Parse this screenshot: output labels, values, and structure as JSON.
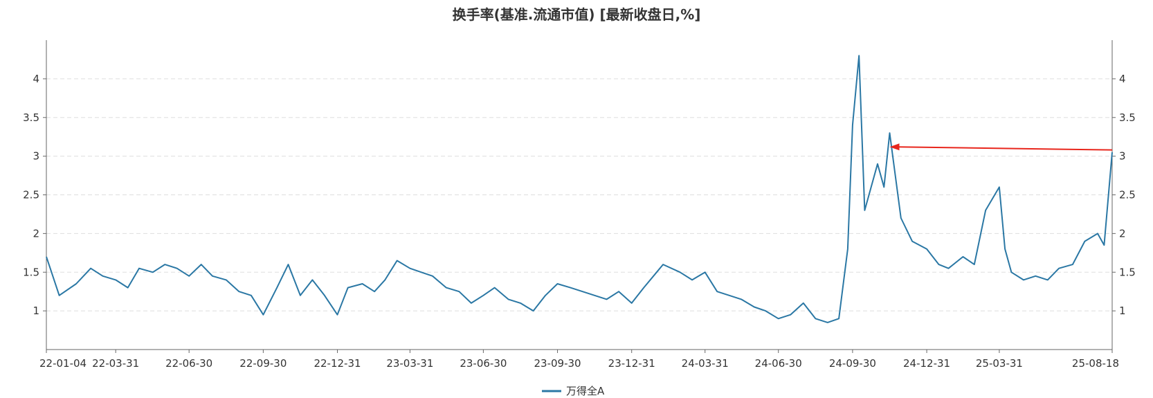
{
  "chart_data": {
    "type": "line",
    "title": "换手率(基准.流通市值) [最新收盘日,%]",
    "xlabel": "",
    "ylabel": "",
    "x_tick_labels": [
      "22-01-04",
      "22-03-31",
      "22-06-30",
      "22-09-30",
      "22-12-31",
      "23-03-31",
      "23-06-30",
      "23-09-30",
      "23-12-31",
      "24-03-31",
      "24-06-30",
      "24-09-30",
      "24-12-31",
      "25-03-31",
      "25-08-18"
    ],
    "y_ticks": [
      1,
      1.5,
      2,
      2.5,
      3,
      3.5,
      4
    ],
    "y_tick_labels": [
      "1",
      "1.5",
      "2",
      "2.5",
      "3",
      "3.5",
      "4"
    ],
    "ylim": [
      0.5,
      4.5
    ],
    "grid": true,
    "legend_position": "bottom-center",
    "colors": {
      "series": "#2a77a4",
      "annotation_arrow": "#e8261c",
      "grid": "#dddddd",
      "axis": "#666666"
    },
    "series": [
      {
        "name": "万得全A",
        "x": [
          "22-01-04",
          "22-01-20",
          "22-02-10",
          "22-02-28",
          "22-03-15",
          "22-03-31",
          "22-04-15",
          "22-04-29",
          "22-05-16",
          "22-05-31",
          "22-06-15",
          "22-06-30",
          "22-07-15",
          "22-07-29",
          "22-08-15",
          "22-08-31",
          "22-09-15",
          "22-09-30",
          "22-10-17",
          "22-10-31",
          "22-11-15",
          "22-11-30",
          "22-12-15",
          "22-12-31",
          "23-01-13",
          "23-01-31",
          "23-02-15",
          "23-02-28",
          "23-03-15",
          "23-03-31",
          "23-04-14",
          "23-04-28",
          "23-05-15",
          "23-05-31",
          "23-06-15",
          "23-06-30",
          "23-07-14",
          "23-07-31",
          "23-08-15",
          "23-08-31",
          "23-09-15",
          "23-09-30",
          "23-10-16",
          "23-10-31",
          "23-11-15",
          "23-11-30",
          "23-12-15",
          "23-12-31",
          "24-01-15",
          "24-01-31",
          "24-02-08",
          "24-02-29",
          "24-03-15",
          "24-03-31",
          "24-04-15",
          "24-04-30",
          "24-05-15",
          "24-05-31",
          "24-06-14",
          "24-06-30",
          "24-07-15",
          "24-07-31",
          "24-08-15",
          "24-08-30",
          "24-09-13",
          "24-09-24",
          "24-09-30",
          "24-10-08",
          "24-10-15",
          "24-10-31",
          "24-11-08",
          "24-11-15",
          "24-11-29",
          "24-12-13",
          "24-12-31",
          "25-01-15",
          "25-01-27",
          "25-02-14",
          "25-02-28",
          "25-03-14",
          "25-03-31",
          "25-04-07",
          "25-04-15",
          "25-04-30",
          "25-05-15",
          "25-05-30",
          "25-06-13",
          "25-06-30",
          "25-07-15",
          "25-07-31",
          "25-08-08",
          "25-08-18"
        ],
        "values": [
          1.7,
          1.2,
          1.35,
          1.55,
          1.45,
          1.4,
          1.3,
          1.55,
          1.5,
          1.6,
          1.55,
          1.45,
          1.6,
          1.45,
          1.4,
          1.25,
          1.2,
          0.95,
          1.3,
          1.6,
          1.2,
          1.4,
          1.2,
          0.95,
          1.3,
          1.35,
          1.25,
          1.4,
          1.65,
          1.55,
          1.5,
          1.45,
          1.3,
          1.25,
          1.1,
          1.2,
          1.3,
          1.15,
          1.1,
          1.0,
          1.2,
          1.35,
          1.3,
          1.25,
          1.2,
          1.15,
          1.25,
          1.1,
          1.3,
          1.5,
          1.6,
          1.5,
          1.4,
          1.5,
          1.25,
          1.2,
          1.15,
          1.05,
          1.0,
          0.9,
          0.95,
          1.1,
          0.9,
          0.85,
          0.9,
          1.8,
          3.4,
          4.3,
          2.3,
          2.9,
          2.6,
          3.3,
          2.2,
          1.9,
          1.8,
          1.6,
          1.55,
          1.7,
          1.6,
          2.3,
          2.6,
          1.8,
          1.5,
          1.4,
          1.45,
          1.4,
          1.55,
          1.6,
          1.9,
          2.0,
          1.85,
          3.05
        ]
      }
    ],
    "annotations": [
      {
        "type": "arrow",
        "from": [
          "25-08-18",
          3.08
        ],
        "to": [
          "24-11-15",
          3.12
        ]
      }
    ]
  }
}
